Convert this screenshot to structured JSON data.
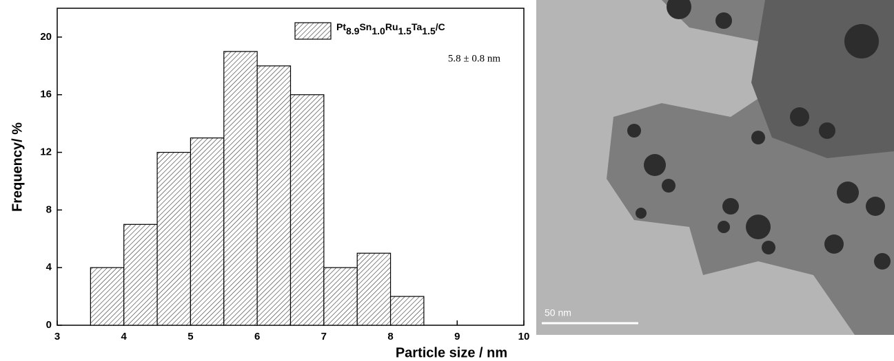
{
  "chart_data": {
    "type": "histogram",
    "xlabel": "Particle size / nm",
    "ylabel": "Frequency/ %",
    "bins": [
      3.5,
      4,
      4.5,
      5,
      5.5,
      6,
      6.5,
      7,
      7.5,
      8,
      8.5
    ],
    "series": [
      {
        "name": "Pt8.9Sn1.0Ru1.5Ta1.5/C",
        "color": "#000000",
        "values": [
          4,
          7,
          12,
          13,
          19,
          18,
          16,
          4,
          5,
          2
        ]
      }
    ],
    "annotation": "5.8 ± 0.8 nm",
    "xlim": [
      3,
      10
    ],
    "xticks": [
      3,
      4,
      5,
      6,
      7,
      8,
      9,
      10
    ],
    "ylim": [
      0,
      22
    ],
    "yticks": [
      0,
      4,
      8,
      12,
      16,
      20
    ]
  },
  "image": {
    "scale_bar": "50 nm"
  }
}
